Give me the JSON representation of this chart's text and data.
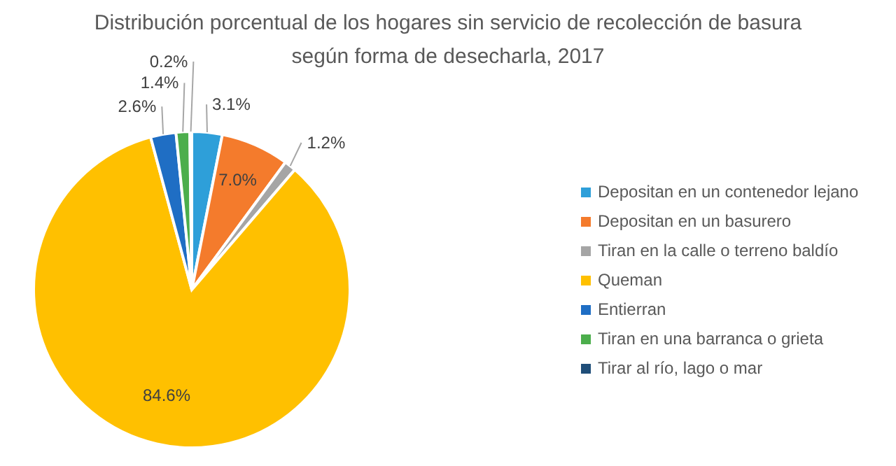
{
  "chart_data": {
    "type": "pie",
    "title": "Distribución porcentual de los hogares sin servicio de recolección de basura",
    "subtitle": "según forma de desecharla, 2017",
    "categories": [
      "Depositan en un contenedor lejano",
      "Depositan en un basurero",
      "Tiran en la calle o terreno baldío",
      "Queman",
      "Entierran",
      "Tiran en una barranca o grieta",
      "Tirar al río, lago o mar"
    ],
    "values": [
      3.1,
      7.0,
      1.2,
      84.6,
      2.6,
      1.4,
      0.2
    ],
    "colors": [
      "#2e9fd9",
      "#f47b2c",
      "#a5a5a5",
      "#ffc000",
      "#1f6ec4",
      "#4cae4c",
      "#1f4e79"
    ],
    "value_labels": [
      "3.1%",
      "7.0%",
      "1.2%",
      "84.6%",
      "2.6%",
      "1.4%",
      "0.2%"
    ],
    "legend": "right"
  }
}
